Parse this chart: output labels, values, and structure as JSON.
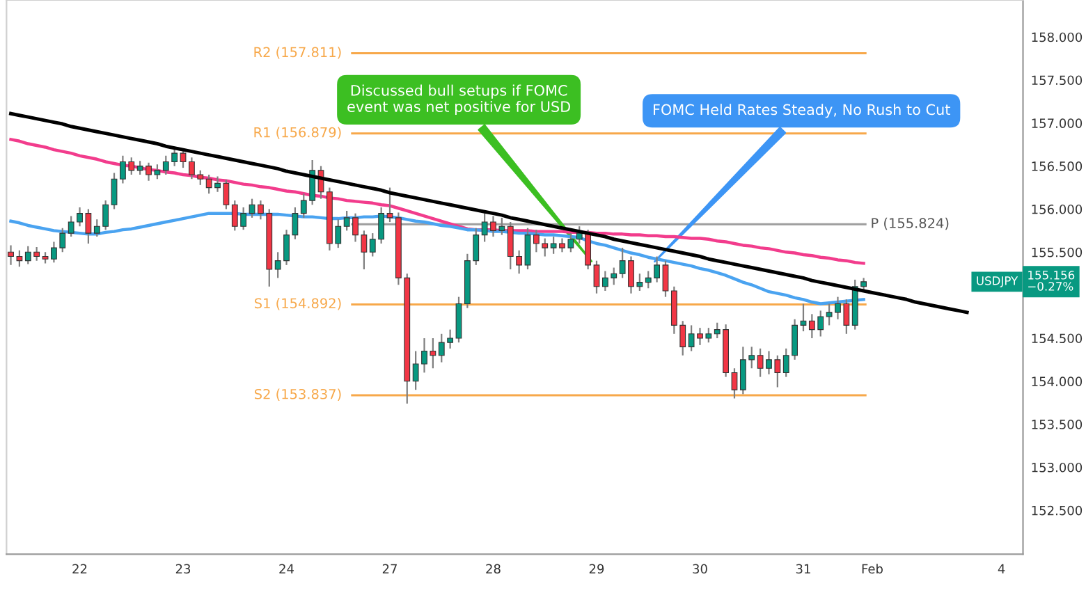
{
  "chart_data": {
    "type": "candlestick",
    "categories": [
      null,
      null,
      null,
      null,
      null,
      null,
      null,
      null,
      "22",
      null,
      null,
      null,
      null,
      null,
      null,
      null,
      null,
      null,
      null,
      null,
      "23",
      null,
      null,
      null,
      null,
      null,
      null,
      null,
      null,
      null,
      null,
      null,
      "24",
      null,
      null,
      null,
      null,
      null,
      null,
      null,
      null,
      null,
      null,
      null,
      "27",
      null,
      null,
      null,
      null,
      null,
      null,
      null,
      null,
      null,
      null,
      null,
      "28",
      null,
      null,
      null,
      null,
      null,
      null,
      null,
      null,
      null,
      null,
      null,
      "29",
      null,
      null,
      null,
      null,
      null,
      null,
      null,
      null,
      null,
      null,
      null,
      "30",
      null,
      null,
      null,
      null,
      null,
      null,
      null,
      null,
      null,
      null,
      null,
      "31",
      null,
      null,
      null,
      null,
      null,
      null,
      null,
      "Feb",
      null,
      null,
      null,
      null,
      null,
      null,
      null,
      null,
      null,
      null,
      null,
      null,
      null,
      null,
      "4",
      null,
      null
    ],
    "ohlc": [
      [
        155.5,
        155.58,
        155.35,
        155.45
      ],
      [
        155.45,
        155.52,
        155.33,
        155.4
      ],
      [
        155.4,
        155.57,
        155.36,
        155.5
      ],
      [
        155.5,
        155.56,
        155.4,
        155.45
      ],
      [
        155.45,
        155.5,
        155.37,
        155.42
      ],
      [
        155.42,
        155.62,
        155.38,
        155.55
      ],
      [
        155.55,
        155.78,
        155.5,
        155.72
      ],
      [
        155.72,
        155.92,
        155.68,
        155.85
      ],
      [
        155.85,
        156.02,
        155.8,
        155.95
      ],
      [
        155.95,
        156.0,
        155.6,
        155.72
      ],
      [
        155.72,
        155.88,
        155.68,
        155.8
      ],
      [
        155.8,
        156.1,
        155.76,
        156.05
      ],
      [
        156.05,
        156.42,
        156.0,
        156.35
      ],
      [
        156.35,
        156.62,
        156.3,
        156.55
      ],
      [
        156.55,
        156.6,
        156.4,
        156.45
      ],
      [
        156.45,
        156.56,
        156.4,
        156.5
      ],
      [
        156.5,
        156.54,
        156.33,
        156.4
      ],
      [
        156.4,
        156.52,
        156.35,
        156.45
      ],
      [
        156.45,
        156.62,
        156.4,
        156.55
      ],
      [
        156.55,
        156.72,
        156.5,
        156.65
      ],
      [
        156.65,
        156.7,
        156.48,
        156.55
      ],
      [
        156.55,
        156.6,
        156.35,
        156.4
      ],
      [
        156.4,
        156.45,
        156.28,
        156.35
      ],
      [
        156.35,
        156.4,
        156.18,
        156.25
      ],
      [
        156.25,
        156.38,
        156.2,
        156.3
      ],
      [
        156.3,
        156.34,
        156.0,
        156.05
      ],
      [
        156.05,
        156.1,
        155.75,
        155.8
      ],
      [
        155.8,
        156.02,
        155.76,
        155.95
      ],
      [
        155.95,
        156.12,
        155.9,
        156.05
      ],
      [
        156.05,
        156.1,
        155.88,
        155.95
      ],
      [
        155.95,
        156.0,
        155.1,
        155.3
      ],
      [
        155.3,
        155.5,
        155.2,
        155.4
      ],
      [
        155.4,
        155.76,
        155.35,
        155.7
      ],
      [
        155.7,
        156.02,
        155.65,
        155.95
      ],
      [
        155.95,
        156.18,
        155.9,
        156.1
      ],
      [
        156.1,
        156.57,
        156.05,
        156.45
      ],
      [
        156.45,
        156.5,
        156.12,
        156.2
      ],
      [
        156.2,
        156.25,
        155.52,
        155.6
      ],
      [
        155.6,
        155.88,
        155.55,
        155.8
      ],
      [
        155.8,
        155.98,
        155.75,
        155.9
      ],
      [
        155.9,
        155.95,
        155.62,
        155.7
      ],
      [
        155.7,
        155.75,
        155.3,
        155.5
      ],
      [
        155.5,
        155.72,
        155.45,
        155.65
      ],
      [
        155.65,
        156.02,
        155.6,
        155.95
      ],
      [
        155.95,
        156.25,
        155.85,
        155.9
      ],
      [
        155.9,
        155.96,
        155.12,
        155.2
      ],
      [
        155.2,
        155.25,
        153.74,
        154.0
      ],
      [
        154.0,
        154.35,
        153.9,
        154.2
      ],
      [
        154.2,
        154.5,
        154.1,
        154.35
      ],
      [
        154.35,
        154.5,
        154.15,
        154.3
      ],
      [
        154.3,
        154.55,
        154.22,
        154.45
      ],
      [
        154.45,
        154.6,
        154.38,
        154.5
      ],
      [
        154.5,
        154.98,
        154.45,
        154.9
      ],
      [
        154.9,
        155.48,
        154.85,
        155.4
      ],
      [
        155.4,
        155.78,
        155.35,
        155.7
      ],
      [
        155.7,
        155.95,
        155.62,
        155.85
      ],
      [
        155.85,
        155.92,
        155.68,
        155.75
      ],
      [
        155.75,
        155.9,
        155.7,
        155.8
      ],
      [
        155.8,
        155.85,
        155.3,
        155.45
      ],
      [
        155.45,
        155.52,
        155.25,
        155.35
      ],
      [
        155.35,
        155.78,
        155.3,
        155.7
      ],
      [
        155.7,
        155.76,
        155.5,
        155.6
      ],
      [
        155.6,
        155.66,
        155.45,
        155.55
      ],
      [
        155.55,
        155.68,
        155.48,
        155.6
      ],
      [
        155.6,
        155.66,
        155.5,
        155.55
      ],
      [
        155.55,
        155.72,
        155.5,
        155.65
      ],
      [
        155.65,
        155.8,
        155.6,
        155.72
      ],
      [
        155.72,
        155.76,
        155.3,
        155.35
      ],
      [
        155.35,
        155.4,
        155.02,
        155.1
      ],
      [
        155.1,
        155.28,
        155.05,
        155.2
      ],
      [
        155.2,
        155.32,
        155.12,
        155.25
      ],
      [
        155.25,
        155.55,
        155.2,
        155.4
      ],
      [
        155.4,
        155.45,
        155.02,
        155.1
      ],
      [
        155.1,
        155.25,
        155.05,
        155.15
      ],
      [
        155.15,
        155.28,
        155.08,
        155.2
      ],
      [
        155.2,
        155.45,
        155.15,
        155.35
      ],
      [
        155.35,
        155.4,
        154.98,
        155.05
      ],
      [
        155.05,
        155.1,
        154.55,
        154.65
      ],
      [
        154.65,
        154.7,
        154.3,
        154.4
      ],
      [
        154.4,
        154.65,
        154.35,
        154.55
      ],
      [
        154.55,
        154.62,
        154.42,
        154.5
      ],
      [
        154.5,
        154.62,
        154.45,
        154.55
      ],
      [
        154.55,
        154.68,
        154.5,
        154.6
      ],
      [
        154.6,
        154.66,
        154.05,
        154.1
      ],
      [
        154.1,
        154.15,
        153.8,
        153.9
      ],
      [
        153.9,
        154.4,
        153.85,
        154.25
      ],
      [
        154.25,
        154.4,
        154.15,
        154.3
      ],
      [
        154.3,
        154.38,
        154.05,
        154.15
      ],
      [
        154.15,
        154.35,
        154.08,
        154.25
      ],
      [
        154.25,
        154.3,
        153.93,
        154.1
      ],
      [
        154.1,
        154.38,
        154.05,
        154.3
      ],
      [
        154.3,
        154.72,
        154.25,
        154.65
      ],
      [
        154.65,
        154.9,
        154.58,
        154.7
      ],
      [
        154.7,
        154.78,
        154.5,
        154.6
      ],
      [
        154.6,
        154.82,
        154.52,
        154.75
      ],
      [
        154.75,
        154.9,
        154.65,
        154.8
      ],
      [
        154.8,
        154.98,
        154.72,
        154.9
      ],
      [
        154.9,
        154.95,
        154.55,
        154.65
      ],
      [
        154.65,
        155.18,
        154.6,
        155.1
      ],
      [
        155.1,
        155.2,
        155.05,
        155.156
      ],
      null,
      null,
      null,
      null,
      null,
      null,
      null,
      null,
      null,
      null,
      null,
      null,
      null,
      null,
      null,
      null,
      null,
      null
    ],
    "series": [
      {
        "type": "line",
        "color": "#f23c8c",
        "values": [
          156.81,
          156.79,
          156.76,
          156.74,
          156.72,
          156.69,
          156.67,
          156.65,
          156.62,
          156.6,
          156.58,
          156.55,
          156.53,
          156.51,
          156.5,
          156.48,
          156.46,
          156.45,
          156.43,
          156.42,
          156.4,
          156.39,
          156.37,
          156.36,
          156.34,
          156.33,
          156.31,
          156.29,
          156.28,
          156.26,
          156.25,
          156.23,
          156.21,
          156.2,
          156.18,
          156.16,
          156.15,
          156.13,
          156.12,
          156.1,
          156.09,
          156.08,
          156.07,
          156.05,
          156.04,
          156.01,
          155.98,
          155.95,
          155.92,
          155.89,
          155.86,
          155.83,
          155.8,
          155.77,
          155.76,
          155.76,
          155.76,
          155.75,
          155.75,
          155.75,
          155.75,
          155.74,
          155.74,
          155.74,
          155.74,
          155.73,
          155.73,
          155.73,
          155.72,
          155.72,
          155.71,
          155.71,
          155.7,
          155.7,
          155.69,
          155.69,
          155.68,
          155.68,
          155.67,
          155.66,
          155.66,
          155.65,
          155.63,
          155.62,
          155.6,
          155.58,
          155.57,
          155.55,
          155.54,
          155.52,
          155.5,
          155.49,
          155.47,
          155.46,
          155.44,
          155.43,
          155.41,
          155.4,
          155.38,
          155.37,
          null,
          null,
          null,
          null,
          null,
          null,
          null,
          null,
          null,
          null,
          null,
          null,
          null,
          null,
          null,
          null,
          null,
          null
        ]
      },
      {
        "type": "line",
        "color": "#4aa3f0",
        "values": [
          155.86,
          155.84,
          155.81,
          155.79,
          155.77,
          155.75,
          155.74,
          155.73,
          155.72,
          155.71,
          155.71,
          155.73,
          155.74,
          155.76,
          155.77,
          155.79,
          155.81,
          155.83,
          155.85,
          155.87,
          155.89,
          155.91,
          155.93,
          155.95,
          155.95,
          155.95,
          155.95,
          155.94,
          155.94,
          155.94,
          155.94,
          155.94,
          155.93,
          155.92,
          155.91,
          155.91,
          155.9,
          155.89,
          155.89,
          155.9,
          155.9,
          155.91,
          155.91,
          155.92,
          155.91,
          155.9,
          155.88,
          155.86,
          155.85,
          155.83,
          155.81,
          155.8,
          155.78,
          155.76,
          155.76,
          155.75,
          155.74,
          155.74,
          155.73,
          155.72,
          155.72,
          155.71,
          155.7,
          155.7,
          155.69,
          155.68,
          155.67,
          155.63,
          155.6,
          155.58,
          155.55,
          155.52,
          155.49,
          155.47,
          155.44,
          155.42,
          155.4,
          155.38,
          155.36,
          155.34,
          155.31,
          155.29,
          155.26,
          155.23,
          155.19,
          155.15,
          155.12,
          155.08,
          155.04,
          155.02,
          155.0,
          154.97,
          154.95,
          154.92,
          154.9,
          154.91,
          154.92,
          154.93,
          154.94,
          154.95,
          null,
          null,
          null,
          null,
          null,
          null,
          null,
          null,
          null,
          null,
          null,
          null,
          null,
          null,
          null,
          null,
          null,
          null
        ]
      },
      {
        "type": "line",
        "color": "#000000",
        "values": [
          157.11,
          157.09,
          157.07,
          157.05,
          157.03,
          157.01,
          156.99,
          156.96,
          156.94,
          156.92,
          156.9,
          156.88,
          156.86,
          156.84,
          156.82,
          156.8,
          156.78,
          156.76,
          156.73,
          156.71,
          156.69,
          156.67,
          156.65,
          156.63,
          156.61,
          156.59,
          156.57,
          156.55,
          156.53,
          156.51,
          156.49,
          156.47,
          156.44,
          156.42,
          156.4,
          156.38,
          156.36,
          156.34,
          156.32,
          156.3,
          156.28,
          156.26,
          156.24,
          156.22,
          156.19,
          156.17,
          156.15,
          156.13,
          156.11,
          156.09,
          156.07,
          156.05,
          156.03,
          156.01,
          155.99,
          155.97,
          155.95,
          155.93,
          155.9,
          155.88,
          155.86,
          155.84,
          155.82,
          155.8,
          155.78,
          155.76,
          155.74,
          155.72,
          155.7,
          155.68,
          155.65,
          155.63,
          155.61,
          155.59,
          155.57,
          155.55,
          155.53,
          155.51,
          155.49,
          155.47,
          155.45,
          155.42,
          155.4,
          155.38,
          155.36,
          155.34,
          155.32,
          155.3,
          155.28,
          155.26,
          155.24,
          155.22,
          155.2,
          155.17,
          155.15,
          155.13,
          155.11,
          155.09,
          155.07,
          155.05,
          155.03,
          155.01,
          154.99,
          154.97,
          154.95,
          154.92,
          154.9,
          154.88,
          154.86,
          154.84,
          154.82,
          154.8,
          null,
          null,
          null,
          null,
          null,
          null
        ]
      }
    ],
    "ref_lines": [
      {
        "axis": "y",
        "value": 157.811,
        "label": "R2 (157.811)",
        "color": "#f7a84a"
      },
      {
        "axis": "y",
        "value": 156.879,
        "label": "R1 (156.879)",
        "color": "#f7a84a"
      },
      {
        "axis": "y",
        "value": 155.824,
        "label": "P (155.824)",
        "color": "#9e9e9e"
      },
      {
        "axis": "y",
        "value": 154.892,
        "label": "S1 (154.892)",
        "color": "#f7a84a"
      },
      {
        "axis": "y",
        "value": 153.837,
        "label": "S2 (153.837)",
        "color": "#f7a84a"
      }
    ],
    "annotations": [
      "Discussed bull setups if FOMC\nevent was net positive for USD",
      "FOMC Held Rates Steady, No Rush to Cut",
      "USDJPY",
      "155.156",
      "−0.27%"
    ],
    "ylim": [
      151.99,
      158.43
    ],
    "yticks": [
      {
        "value": 152.5,
        "label": "152.500"
      },
      {
        "value": 153,
        "label": "153.000"
      },
      {
        "value": 153.5,
        "label": "153.500"
      },
      {
        "value": 154,
        "label": "154.000"
      },
      {
        "value": 154.5,
        "label": "154.500"
      },
      {
        "value": 155.5,
        "label": "155.500"
      },
      {
        "value": 156,
        "label": "156.000"
      },
      {
        "value": 156.5,
        "label": "156.500"
      },
      {
        "value": 157,
        "label": "157.000"
      },
      {
        "value": 157.5,
        "label": "157.500"
      },
      {
        "value": 158,
        "label": "158.000"
      }
    ],
    "grid": false
  }
}
